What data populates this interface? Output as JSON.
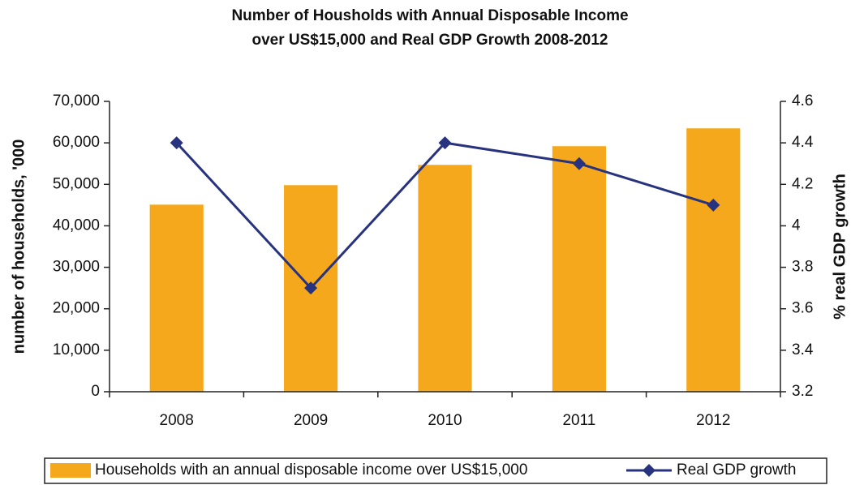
{
  "chart_data": {
    "type": "bar_line",
    "title": [
      "Number of Housholds with Annual Disposable Income",
      "over US$15,000 and Real GDP Growth 2008-2012"
    ],
    "ylabel": "number of households, '000",
    "y2label": "% real GDP growth",
    "categories": [
      "2008",
      "2009",
      "2010",
      "2011",
      "2012"
    ],
    "series": [
      {
        "name": "Households with an annual disposable income over US$15,000",
        "type": "bar",
        "color": "#F5A81C",
        "values": [
          45100,
          49800,
          54700,
          59200,
          63500
        ]
      },
      {
        "name": "Real GDP growth",
        "type": "line",
        "axis": "y2",
        "color": "#28337F",
        "values": [
          4.4,
          3.7,
          4.4,
          4.3,
          4.1
        ]
      }
    ],
    "ylim": [
      0,
      70000
    ],
    "yticks": [
      0,
      {
        "value": 10000,
        "label": "10,000"
      },
      {
        "value": 20000,
        "label": "20,000"
      },
      {
        "value": 30000,
        "label": "30,000"
      },
      {
        "value": 40000,
        "label": "40,000"
      },
      {
        "value": 50000,
        "label": "50,000"
      },
      {
        "value": 60000,
        "label": "60,000"
      },
      {
        "value": 70000,
        "label": "70,000"
      }
    ],
    "y2lim": [
      3.2,
      4.6
    ],
    "y2ticks": [
      3.2,
      3.4,
      3.6,
      3.8,
      4,
      4.2,
      4.4,
      4.6
    ],
    "legend": "bottom"
  }
}
